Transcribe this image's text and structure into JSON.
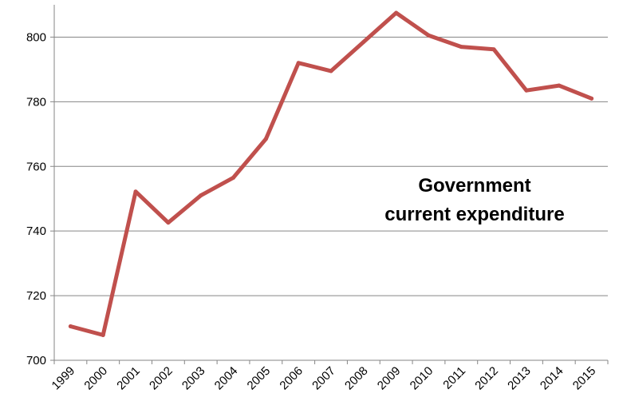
{
  "chart_data": {
    "type": "line",
    "title": "",
    "xlabel": "",
    "ylabel": "",
    "categories": [
      "1999",
      "2000",
      "2001",
      "2002",
      "2003",
      "2004",
      "2005",
      "2006",
      "2007",
      "2008",
      "2009",
      "2010",
      "2011",
      "2012",
      "2013",
      "2014",
      "2015"
    ],
    "series": [
      {
        "values": [
          710.5,
          707.8,
          752.2,
          742.6,
          751.0,
          756.5,
          768.5,
          792.0,
          789.5,
          798.5,
          807.5,
          800.5,
          797.0,
          796.2,
          783.5,
          785.0,
          781.0
        ],
        "color": "#c0504d"
      }
    ],
    "ylim": [
      700,
      810
    ],
    "yticks": [
      700,
      720,
      740,
      760,
      780,
      800
    ],
    "grid": true,
    "annotation": {
      "line1": "Government",
      "line2": "current expenditure"
    }
  }
}
